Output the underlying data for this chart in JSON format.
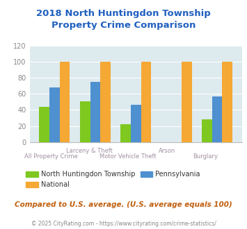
{
  "title": "2018 North Huntingdon Township\nProperty Crime Comparison",
  "categories_top": [
    "",
    "Larceny & Theft",
    "",
    "Arson",
    ""
  ],
  "categories_bottom": [
    "All Property Crime",
    "",
    "Motor Vehicle Theft",
    "",
    "Burglary"
  ],
  "north_huntingdon": [
    44,
    51,
    22,
    0,
    28
  ],
  "pennsylvania": [
    68,
    75,
    46,
    0,
    57
  ],
  "national": [
    100,
    100,
    100,
    100,
    100
  ],
  "bar_colors": {
    "north_huntingdon": "#7ec820",
    "pennsylvania": "#4e90d0",
    "national": "#f5a833"
  },
  "ylim": [
    0,
    120
  ],
  "yticks": [
    0,
    20,
    40,
    60,
    80,
    100,
    120
  ],
  "title_color": "#2060c0",
  "xlabel_color": "#a090a0",
  "background_color": "#ddeaee",
  "footer_text": "Compared to U.S. average. (U.S. average equals 100)",
  "copyright_text": "© 2025 CityRating.com - https://www.cityrating.com/crime-statistics/",
  "legend_labels": [
    "North Huntingdon Township",
    "National",
    "Pennsylvania"
  ],
  "legend_colors": [
    "#7ec820",
    "#f5a833",
    "#4e90d0"
  ],
  "footer_color": "#c06010",
  "copyright_color": "#888888"
}
